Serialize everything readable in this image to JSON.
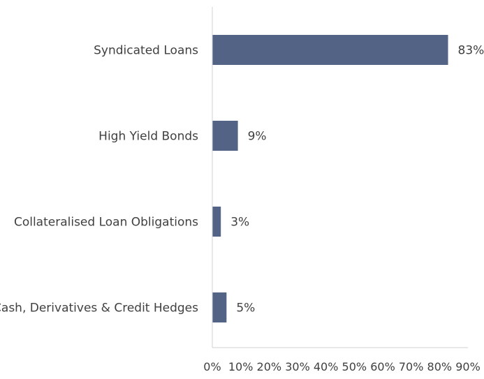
{
  "chart_data": {
    "type": "bar",
    "orientation": "horizontal",
    "categories": [
      "Syndicated Loans",
      "High Yield Bonds",
      "Collateralised Loan Obligations",
      "Cash, Derivatives & Credit Hedges"
    ],
    "values": [
      83,
      9,
      3,
      5
    ],
    "data_labels": [
      "83%",
      "9%",
      "3%",
      "5%"
    ],
    "xlim": [
      0,
      90
    ],
    "x_ticks": [
      0,
      10,
      20,
      30,
      40,
      50,
      60,
      70,
      80,
      90
    ],
    "x_tick_labels": [
      "0%",
      "10%",
      "20%",
      "30%",
      "40%",
      "50%",
      "60%",
      "70%",
      "80%",
      "90%"
    ],
    "title": "",
    "xlabel": "",
    "ylabel": "",
    "grid": false,
    "legend": "none",
    "colors": {
      "bar": "#536386",
      "axis": "#d0d0d0",
      "text": "#404040"
    }
  }
}
